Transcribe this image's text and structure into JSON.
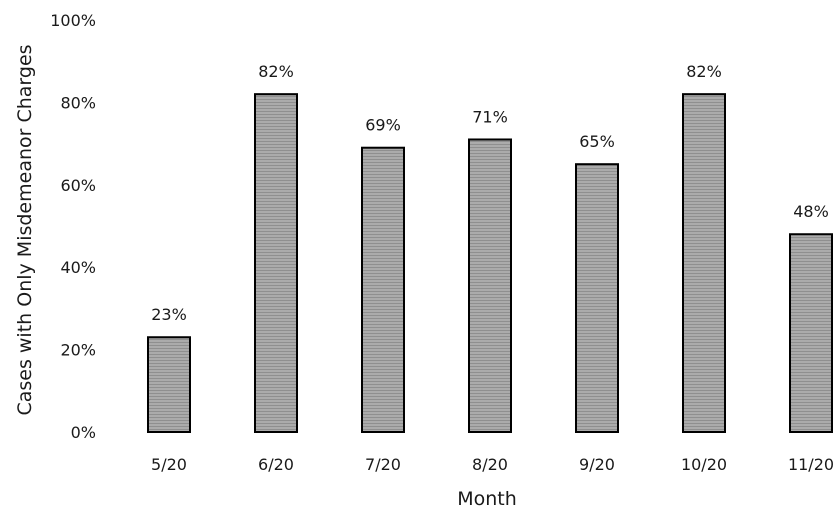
{
  "chart_data": {
    "type": "bar",
    "title": "",
    "xlabel": "Month",
    "ylabel": "Cases with Only Misdemeanor Charges",
    "categories": [
      "5/20",
      "6/20",
      "7/20",
      "8/20",
      "9/20",
      "10/20",
      "11/20"
    ],
    "values": [
      23,
      82,
      69,
      71,
      65,
      82,
      48
    ],
    "data_labels": [
      "23%",
      "82%",
      "69%",
      "71%",
      "65%",
      "82%",
      "48%"
    ],
    "ylim": [
      0,
      100
    ],
    "y_ticks": [
      0,
      20,
      40,
      60,
      80,
      100
    ],
    "y_tick_labels": [
      "0%",
      "20%",
      "40%",
      "60%",
      "80%",
      "100%"
    ],
    "grid": false,
    "legend": "none",
    "bar_fill": "#a6a6a6",
    "bar_stroke": "#000000"
  }
}
